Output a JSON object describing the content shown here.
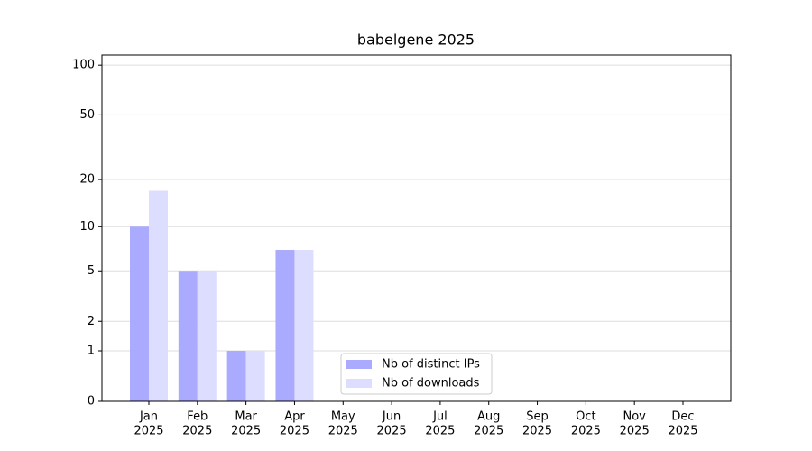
{
  "chart_data": {
    "type": "bar",
    "title": "babelgene 2025",
    "categories": [
      [
        "Jan",
        "2025"
      ],
      [
        "Feb",
        "2025"
      ],
      [
        "Mar",
        "2025"
      ],
      [
        "Apr",
        "2025"
      ],
      [
        "May",
        "2025"
      ],
      [
        "Jun",
        "2025"
      ],
      [
        "Jul",
        "2025"
      ],
      [
        "Aug",
        "2025"
      ],
      [
        "Sep",
        "2025"
      ],
      [
        "Oct",
        "2025"
      ],
      [
        "Nov",
        "2025"
      ],
      [
        "Dec",
        "2025"
      ]
    ],
    "series": [
      {
        "name": "Nb of distinct IPs",
        "color": "#aaaaff",
        "values": [
          10,
          5,
          1,
          7,
          0,
          0,
          0,
          0,
          0,
          0,
          0,
          0
        ]
      },
      {
        "name": "Nb of downloads",
        "color": "#ddddff",
        "values": [
          17,
          5,
          1,
          7,
          0,
          0,
          0,
          0,
          0,
          0,
          0,
          0
        ]
      }
    ],
    "yscale": "log1p",
    "ylim": [
      0,
      115
    ],
    "yticks": [
      0,
      1,
      2,
      5,
      10,
      20,
      50,
      100
    ],
    "grid": true,
    "legend": "lower center"
  }
}
